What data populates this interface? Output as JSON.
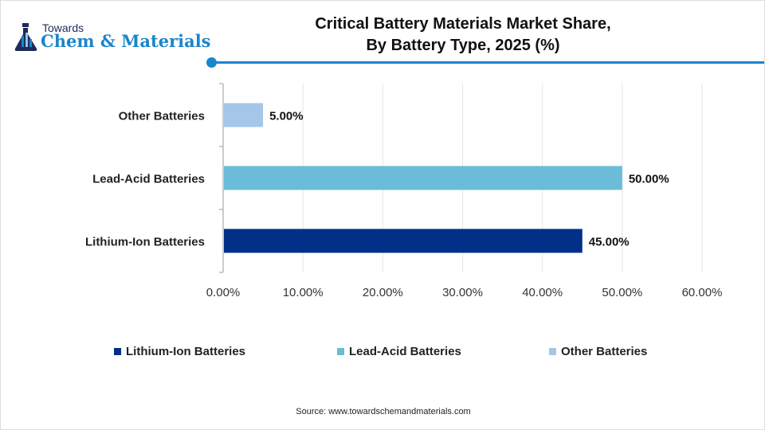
{
  "logo": {
    "line1": "Towards",
    "line2": "Chem & Materials"
  },
  "title_line1": "Critical Battery Materials Market Share,",
  "title_line2": "By Battery Type, 2025 (%)",
  "source": "Source: www.towardschemandmaterials.com",
  "chart_data": {
    "type": "bar",
    "orientation": "horizontal",
    "title": "Critical Battery Materials Market Share, By Battery Type, 2025 (%)",
    "categories": [
      "Lithium-Ion Batteries",
      "Lead-Acid Batteries",
      "Other Batteries"
    ],
    "values": [
      45,
      50,
      5
    ],
    "data_labels": [
      "45.00%",
      "50.00%",
      "5.00%"
    ],
    "colors": [
      "#003087",
      "#6bbcd9",
      "#a4c6e8"
    ],
    "xlim": [
      0,
      60
    ],
    "x_ticks": [
      "0.00%",
      "10.00%",
      "20.00%",
      "30.00%",
      "40.00%",
      "50.00%",
      "60.00%"
    ],
    "grid": true,
    "legend_position": "bottom",
    "legend": [
      "Lithium-Ion Batteries",
      "Lead-Acid Batteries",
      "Other Batteries"
    ]
  }
}
